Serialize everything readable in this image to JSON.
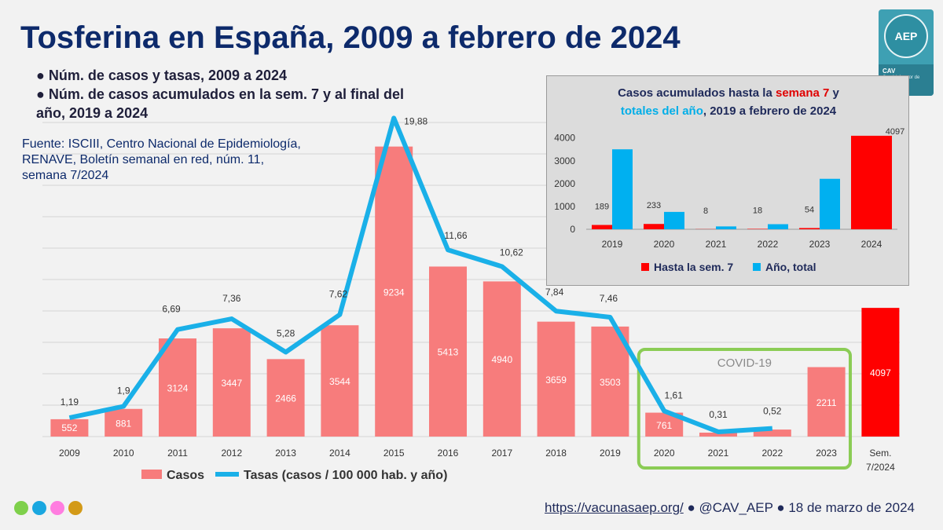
{
  "title": "Tosferina en España, 2009 a febrero de 2024",
  "bullets": [
    "● Núm. de casos y tasas, 2009 a 2024",
    "● Núm. de casos acumulados en la sem. 7 y al final del",
    "año, 2019 a 2024"
  ],
  "source_lines": [
    "Fuente: ISCIII, Centro Nacional de Epidemiología,",
    "RENAVE, Boletín semanal en red, núm. 11,",
    "semana 7/2024"
  ],
  "logo": {
    "mark": "AEP",
    "brand": "CAV",
    "sub": "Comité Asesor de Vacunas"
  },
  "colors": {
    "bars": "#f77c7c",
    "bar_highlight": "#ff0000",
    "line": "#1ab0e8",
    "covid_box": "#8bcc55",
    "inset_red": "#ff0000",
    "inset_blue": "#00b0f0"
  },
  "footer": {
    "url": "https://vacunasaep.org/",
    "handle": "● @CAV_AEP ● 18 de marzo de 2024",
    "dot_colors": [
      "#7ed04b",
      "#1aa7e0",
      "#ff7de0",
      "#d39a18"
    ]
  },
  "chart_data": [
    {
      "type": "bar",
      "categories": [
        "2009",
        "2010",
        "2011",
        "2012",
        "2013",
        "2014",
        "2015",
        "2016",
        "2017",
        "2018",
        "2019",
        "2020",
        "2021",
        "2022",
        "2023",
        "Sem. 7/2024"
      ],
      "series": [
        {
          "name": "Casos",
          "type": "bar",
          "values": [
            552,
            881,
            3124,
            3447,
            2466,
            3544,
            9234,
            5413,
            4940,
            3659,
            3503,
            761,
            125,
            223,
            2211,
            4097
          ]
        },
        {
          "name": "Tasas (casos / 100 000 hab. y año)",
          "type": "line",
          "values": [
            1.19,
            1.9,
            6.69,
            7.36,
            5.28,
            7.62,
            19.88,
            11.66,
            10.62,
            7.84,
            7.46,
            1.61,
            0.31,
            0.52,
            null,
            null
          ]
        }
      ],
      "bar_labels": [
        "552",
        "881",
        "3124",
        "3447",
        "2466",
        "3544",
        "9234",
        "5413",
        "4940",
        "3659",
        "3503",
        "761",
        "",
        "",
        "2211",
        "4097"
      ],
      "line_labels": [
        "1,19",
        "1,9",
        "6,69",
        "7,36",
        "5,28",
        "7,62",
        "19,88",
        "11,66",
        "10,62",
        "7,84",
        "7,46",
        "1,61",
        "0,31",
        "0,52",
        "",
        ""
      ],
      "annotation": "COVID-19",
      "legend": [
        "Casos",
        "Tasas (casos / 100 000 hab. y año)"
      ],
      "ylim": [
        0,
        10000
      ],
      "grid": true,
      "legend_position": "bottom-left"
    },
    {
      "type": "bar",
      "title_parts": [
        "Casos acumulados hasta la ",
        "semana 7",
        " y",
        "totales del año",
        ", 2019 a febrero de 2024"
      ],
      "categories": [
        "2019",
        "2020",
        "2021",
        "2022",
        "2023",
        "2024"
      ],
      "series": [
        {
          "name": "Hasta la sem. 7",
          "values": [
            189,
            233,
            8,
            18,
            54,
            4097
          ]
        },
        {
          "name": "Año, total",
          "values": [
            3503,
            761,
            125,
            223,
            2211,
            null
          ]
        }
      ],
      "data_labels": [
        "189",
        "233",
        "8",
        "18",
        "54",
        "4097"
      ],
      "ylim": [
        0,
        4300
      ],
      "yticks": [
        0,
        1000,
        2000,
        3000,
        4000
      ],
      "legend": [
        "Hasta la sem. 7",
        "Año, total"
      ],
      "legend_position": "bottom"
    }
  ]
}
